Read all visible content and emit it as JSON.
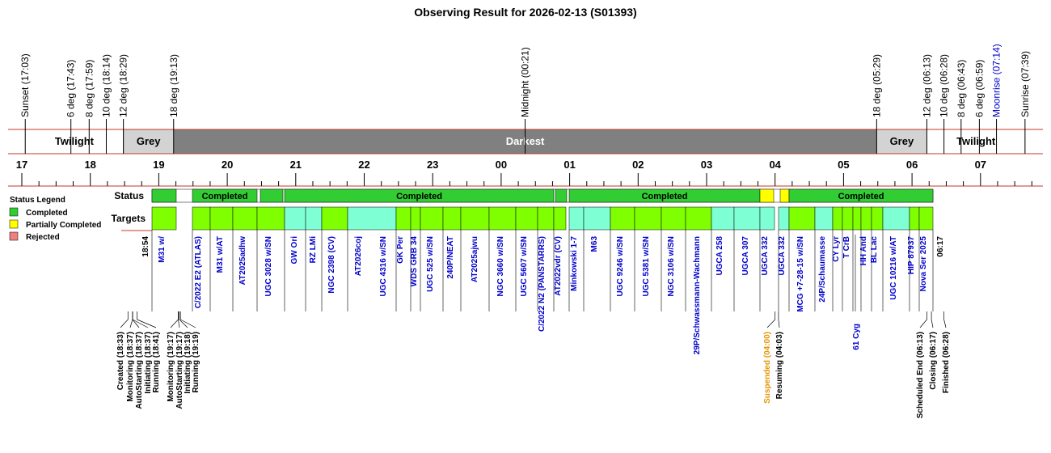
{
  "title": "Observing Result for 2026-02-13 (S01393)",
  "top_events": [
    "Sunset (17:03)",
    "6 deg (17:43)",
    "8 deg (17:59)",
    "10 deg (18:14)",
    "12 deg (18:29)",
    "18 deg (19:13)",
    "Midnight (00:21)",
    "18 deg (05:29)",
    "12 deg (06:13)",
    "10 deg (06:28)",
    "8 deg (06:43)",
    "6 deg (06:59)",
    "Moonrise (07:14)",
    "Sunrise (07:39)"
  ],
  "bands": [
    "Twilight",
    "Grey",
    "Darkest",
    "Grey",
    "Twilight"
  ],
  "hours": [
    "17",
    "18",
    "19",
    "20",
    "21",
    "22",
    "23",
    "00",
    "01",
    "02",
    "03",
    "04",
    "05",
    "06",
    "07"
  ],
  "rows": [
    "Status",
    "Targets"
  ],
  "legend": {
    "title": "Status Legend",
    "items": [
      "Completed",
      "Partially Completed",
      "Rejected"
    ]
  },
  "status_labels": [
    "Completed",
    "Completed",
    "Completed",
    "Completed"
  ],
  "start_time": "18:54",
  "end_time": "06:17",
  "targets": [
    "M31 w/",
    "C/2022 E2 (ATLAS)",
    "M31 w/AT",
    "AT2025adhw",
    "UGC 3028 w/SN",
    "GW Ori",
    "RZ LMi",
    "NGC 2398 (CV)",
    "AT2026coj",
    "UGC 4316 w/SN",
    "GK Per",
    "WDS GRB 34",
    "UGC 525  w/SN",
    "240P/NEAT",
    "AT2025ajwu",
    "NGC 3660 w/SN",
    "UGC 5607 w/SN",
    "C/2022 N2 (PANSTARRS)",
    "AT2022vdr (CV)",
    "Minkowski 1-7",
    "M63",
    "UGC 9246 w/SN",
    "UGC 5381 w/SN",
    "NGC 3106 w/SN",
    "29P/Schwassmann-Wachmann",
    "UGCA 258",
    "UGCA 307",
    "UGCA 332",
    "UGCA 332",
    "MCG +7-28-15 w/SN",
    "24P/Schaumasse",
    "CY Lyr",
    "T CrB",
    "61 Cyg",
    "HH And",
    "BL Lac",
    "UGC 10216 w/AT",
    "HIP 87937",
    "Nova Ser 2025"
  ],
  "bottom_events": [
    "Created (18:33)",
    "Monitoring (18:37)",
    "AutoStarting (18:37)",
    "Initiating (18:37)",
    "Running (18:41)",
    "Monitoring (19:17)",
    "AutoStarting (19:17)",
    "Initiating (19:18)",
    "Running (19:19)",
    "Suspended (04:00)",
    "Resuming (04:03)",
    "Scheduled End (06:13)",
    "Closing (06:17)",
    "Finished (06:28)"
  ]
}
